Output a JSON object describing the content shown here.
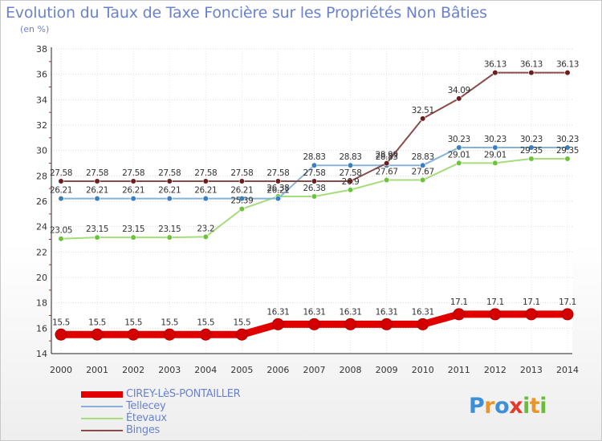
{
  "title": "Evolution du Taux de Taxe Foncière sur les Propriétés Non Bâties",
  "subtitle": "(en %)",
  "logo": {
    "text": "Proxiti",
    "letter_colors": [
      "#3d8fd6",
      "#e8962a",
      "#3d8fd6",
      "#e23b2e",
      "#6abd3c",
      "#e8962a",
      "#6abd3c"
    ]
  },
  "chart_data": {
    "type": "line",
    "title": "Evolution du Taux de Taxe Foncière sur les Propriétés Non Bâties",
    "ylabel": "(en %)",
    "xlabel": "",
    "x": [
      "2000",
      "2001",
      "2002",
      "2003",
      "2004",
      "2005",
      "2006",
      "2007",
      "2008",
      "2009",
      "2010",
      "2011",
      "2012",
      "2013",
      "2014"
    ],
    "ylim": [
      14,
      38
    ],
    "yticks": [
      14,
      16,
      18,
      20,
      22,
      24,
      26,
      28,
      30,
      32,
      34,
      36,
      38
    ],
    "grid": true,
    "legend_position": "bottom-left",
    "series": [
      {
        "name": "CIREY-LèS-PONTAILLER",
        "color": "#e00000",
        "marker_color": "#d40000",
        "emphasis": true,
        "values": [
          15.5,
          15.5,
          15.5,
          15.5,
          15.5,
          15.5,
          16.31,
          16.31,
          16.31,
          16.31,
          16.31,
          17.1,
          17.1,
          17.1,
          17.1
        ],
        "labels": [
          "15.5",
          "15.5",
          "15.5",
          "15.5",
          "15.5",
          "15.5",
          "16.31",
          "16.31",
          "16.31",
          "16.31",
          "16.31",
          "17.1",
          "17.1",
          "17.1",
          "17.1"
        ]
      },
      {
        "name": "Tellecey",
        "color": "#87b1d9",
        "marker_color": "#3a7fc0",
        "emphasis": false,
        "values": [
          26.21,
          26.21,
          26.21,
          26.21,
          26.21,
          26.21,
          26.21,
          28.83,
          28.83,
          28.83,
          28.83,
          30.23,
          30.23,
          30.23,
          30.23
        ],
        "labels": [
          "26.21",
          "26.21",
          "26.21",
          "26.21",
          "26.21",
          "26.21",
          "26.21",
          "28.83",
          "28.83",
          "28.83",
          "28.83",
          "30.23",
          "30.23",
          "30.23",
          "30.23"
        ]
      },
      {
        "name": "Étevaux",
        "color": "#a6dc7c",
        "marker_color": "#6cc23a",
        "emphasis": false,
        "values": [
          23.05,
          23.15,
          23.15,
          23.15,
          23.2,
          25.39,
          26.38,
          26.38,
          26.9,
          27.67,
          27.67,
          29.01,
          29.01,
          29.35,
          29.35
        ],
        "labels": [
          "23.05",
          "23.15",
          "23.15",
          "23.15",
          "23.2",
          "25.39",
          "26.38",
          "26.38",
          "26.9",
          "27.67",
          "27.67",
          "29.01",
          "29.01",
          "29.35",
          "29.35"
        ]
      },
      {
        "name": "Binges",
        "color": "#8a4a4a",
        "marker_color": "#6a1e1e",
        "emphasis": false,
        "values": [
          27.58,
          27.58,
          27.58,
          27.58,
          27.58,
          27.58,
          27.58,
          27.58,
          27.58,
          28.99,
          32.51,
          34.09,
          36.13,
          36.13,
          36.13
        ],
        "labels": [
          "27.58",
          "27.58",
          "27.58",
          "27.58",
          "27.58",
          "27.58",
          "27.58",
          "27.58",
          "27.58",
          "28.99",
          "32.51",
          "34.09",
          "36.13",
          "36.13",
          "36.13"
        ]
      }
    ]
  }
}
